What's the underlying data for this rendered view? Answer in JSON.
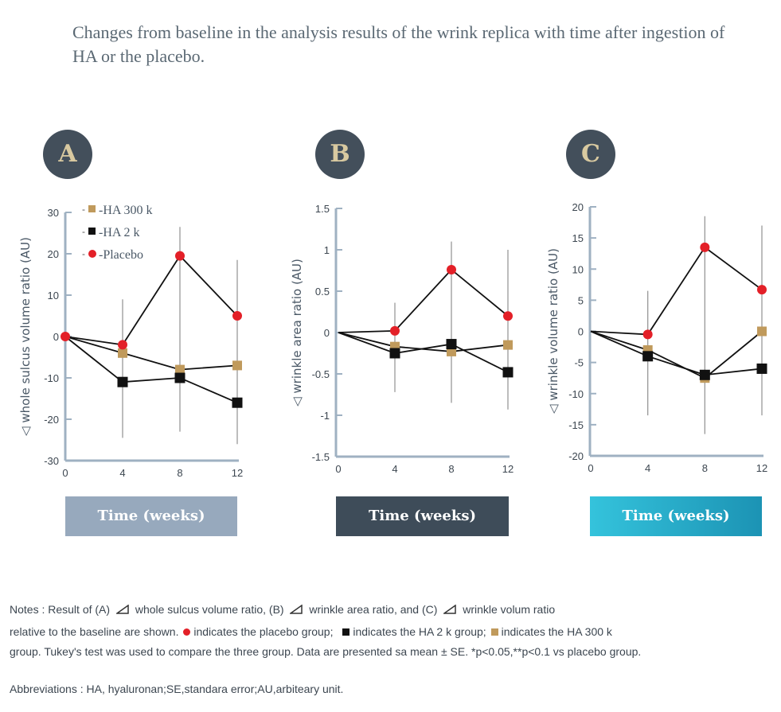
{
  "title": "Changes from baseline in the analysis results of the wrink replica with time after ingestion of HA or the placebo.",
  "panels": [
    {
      "label": "A",
      "time_label": "Time (weeks)",
      "bar_color": "#97a9bd"
    },
    {
      "label": "B",
      "time_label": "Time (weeks)",
      "bar_color": "#3e4c59"
    },
    {
      "label": "C",
      "time_label": "Time (weeks)",
      "bar_color_from": "#34c3dc",
      "bar_color_to": "#1c93b4"
    }
  ],
  "colors": {
    "placebo": "#e32028",
    "ha2k": "#111111",
    "ha300k": "#c09a5c",
    "axis": "#9fb1c2",
    "errorbar": "#999999"
  },
  "legend": [
    {
      "label": "-HA 300 k",
      "marker": "square",
      "color": "#c09a5c"
    },
    {
      "label": "-HA 2 k",
      "marker": "square",
      "color": "#111111"
    },
    {
      "label": "-Placebo",
      "marker": "circle",
      "color": "#e32028"
    }
  ],
  "chart_data": [
    {
      "type": "line",
      "panel": "A",
      "ylabel": "◁ whole sulcus volume ratio (AU)",
      "x": [
        0,
        4,
        8,
        12
      ],
      "ylim": [
        -30,
        30
      ],
      "yticks": [
        -30,
        -20,
        -10,
        0,
        10,
        20,
        30
      ],
      "xticks": [
        0,
        4,
        8,
        12
      ],
      "series": [
        {
          "name": "-HA 300 k",
          "values": [
            0,
            -4,
            -8,
            -7
          ]
        },
        {
          "name": "-HA 2 k",
          "values": [
            0,
            -11,
            -10,
            -16
          ]
        },
        {
          "name": "-Placebo",
          "values": [
            0,
            -2,
            19.5,
            5
          ]
        }
      ],
      "error_bars": [
        {
          "x": 4,
          "low": -24.5,
          "high": 9
        },
        {
          "x": 8,
          "low": -23,
          "high": 26.5
        },
        {
          "x": 12,
          "low": -26,
          "high": 18.5
        }
      ]
    },
    {
      "type": "line",
      "panel": "B",
      "ylabel": "◁ wrinkle area  ratio (AU)",
      "x": [
        0,
        4,
        8,
        12
      ],
      "ylim": [
        -1.5,
        1.5
      ],
      "yticks": [
        -1.5,
        -1,
        -0.5,
        0,
        0.5,
        1,
        1.5
      ],
      "xticks": [
        0,
        4,
        8,
        12
      ],
      "series": [
        {
          "name": "-HA 300 k",
          "values": [
            0,
            -0.17,
            -0.23,
            -0.15
          ]
        },
        {
          "name": "-HA 2 k",
          "values": [
            0,
            -0.25,
            -0.14,
            -0.48
          ]
        },
        {
          "name": "-Placebo",
          "values": [
            0,
            0.02,
            0.76,
            0.2
          ]
        }
      ],
      "error_bars": [
        {
          "x": 4,
          "low": -0.72,
          "high": 0.36
        },
        {
          "x": 8,
          "low": -0.85,
          "high": 1.1
        },
        {
          "x": 12,
          "low": -0.93,
          "high": 1.0
        }
      ]
    },
    {
      "type": "line",
      "panel": "C",
      "ylabel": "◁ wrinkle volume  ratio (AU)",
      "x": [
        0,
        4,
        8,
        12
      ],
      "ylim": [
        -20,
        20
      ],
      "yticks": [
        -20,
        -15,
        -10,
        -5,
        0,
        5,
        10,
        15,
        20
      ],
      "xticks": [
        0,
        4,
        8,
        12
      ],
      "series": [
        {
          "name": "-HA 300 k",
          "values": [
            0,
            -3,
            -7.5,
            0
          ]
        },
        {
          "name": "-HA 2 k",
          "values": [
            0,
            -4,
            -7,
            -6
          ]
        },
        {
          "name": "-Placebo",
          "values": [
            0,
            -0.5,
            13.5,
            6.7
          ]
        }
      ],
      "error_bars": [
        {
          "x": 4,
          "low": -13.5,
          "high": 6.5
        },
        {
          "x": 8,
          "low": -16.5,
          "high": 18.5
        },
        {
          "x": 12,
          "low": -13.5,
          "high": 17
        }
      ]
    }
  ],
  "notes": {
    "line1_a": "Notes : Result of (A)",
    "line1_b": "whole sulcus volume ratio, (B)",
    "line1_c": "wrinkle area ratio, and (C)",
    "line1_d": "wrinkle volum ratio",
    "line2_a": "relative to the baseline are shown.",
    "line2_b": "indicates the placebo group;",
    "line2_c": "indicates the HA 2 k group;",
    "line2_d": "indicates the HA 300 k",
    "line3": "group. Tukey's test was used to compare the three group. Data are presented sa mean  ± SE. *p<0.05,**p<0.1 vs placebo group.",
    "abbreviations": "Abbreviations : HA, hyaluronan;SE,standara error;AU,arbiteary unit."
  }
}
